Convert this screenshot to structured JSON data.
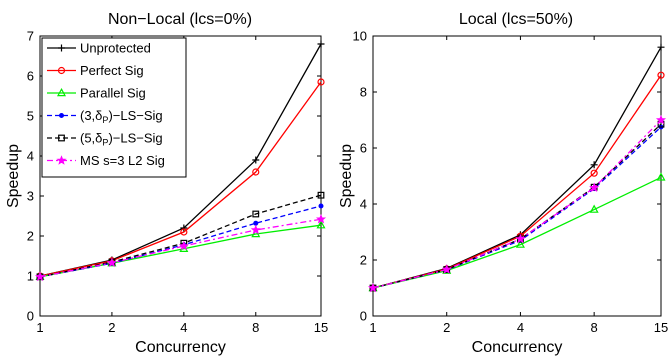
{
  "chart_data": [
    {
      "type": "line",
      "title": "Non−Local (lcs=0%)",
      "xlabel": "Concurrency",
      "ylabel": "Speedup",
      "x": [
        1,
        2,
        4,
        8,
        15
      ],
      "x_tick_labels": [
        "1",
        "2",
        "4",
        "8",
        "15"
      ],
      "x_scale": "log",
      "ylim": [
        0,
        7
      ],
      "y_ticks": [
        0,
        1,
        2,
        3,
        4,
        5,
        6,
        7
      ],
      "y_tick_labels": [
        "0",
        "1",
        "2",
        "3",
        "4",
        "5",
        "6",
        "7"
      ],
      "grid": false,
      "legend_position": "top-left",
      "series": [
        {
          "name": "Unprotected",
          "values": [
            1.0,
            1.4,
            2.2,
            3.9,
            6.8
          ],
          "color": "#000000",
          "dash": "solid",
          "marker": "plus"
        },
        {
          "name": "Perfect Sig",
          "values": [
            1.0,
            1.38,
            2.1,
            3.6,
            5.85
          ],
          "color": "#ff0000",
          "dash": "solid",
          "marker": "circle"
        },
        {
          "name": "Parallel Sig",
          "values": [
            0.98,
            1.32,
            1.68,
            2.05,
            2.27
          ],
          "color": "#00ee00",
          "dash": "solid",
          "marker": "triangle"
        },
        {
          "name": "(3,δP)−LS−Sig",
          "values": [
            0.98,
            1.32,
            1.78,
            2.32,
            2.75
          ],
          "color": "#0000ff",
          "dash": "dashed",
          "marker": "dot"
        },
        {
          "name": "(5,δP)−LS−Sig",
          "values": [
            0.98,
            1.35,
            1.82,
            2.55,
            3.02
          ],
          "color": "#000000",
          "dash": "dashed",
          "marker": "square"
        },
        {
          "name": "MS s=3 L2 Sig",
          "values": [
            0.98,
            1.33,
            1.75,
            2.15,
            2.42
          ],
          "color": "#ff00ff",
          "dash": "dashdot",
          "marker": "star"
        }
      ],
      "legend": [
        {
          "pre": "Unprotected",
          "sub": "",
          "post": ""
        },
        {
          "pre": "Perfect Sig",
          "sub": "",
          "post": ""
        },
        {
          "pre": "Parallel Sig",
          "sub": "",
          "post": ""
        },
        {
          "pre": "(3,δ",
          "sub": "P",
          "post": ")−LS−Sig"
        },
        {
          "pre": "(5,δ",
          "sub": "P",
          "post": ")−LS−Sig"
        },
        {
          "pre": "MS s=3 L2 Sig",
          "sub": "",
          "post": ""
        }
      ]
    },
    {
      "type": "line",
      "title": "Local (lcs=50%)",
      "xlabel": "Concurrency",
      "ylabel": "Speedup",
      "x": [
        1,
        2,
        4,
        8,
        15
      ],
      "x_tick_labels": [
        "1",
        "2",
        "4",
        "8",
        "15"
      ],
      "x_scale": "log",
      "ylim": [
        0,
        10
      ],
      "y_ticks": [
        0,
        2,
        4,
        6,
        8,
        10
      ],
      "y_tick_labels": [
        "0",
        "2",
        "4",
        "6",
        "8",
        "10"
      ],
      "grid": false,
      "series": [
        {
          "name": "Unprotected",
          "values": [
            1.0,
            1.7,
            2.9,
            5.4,
            9.6
          ],
          "color": "#000000",
          "dash": "solid",
          "marker": "plus"
        },
        {
          "name": "Perfect Sig",
          "values": [
            1.0,
            1.68,
            2.85,
            5.1,
            8.6
          ],
          "color": "#ff0000",
          "dash": "solid",
          "marker": "circle"
        },
        {
          "name": "Parallel Sig",
          "values": [
            1.0,
            1.62,
            2.55,
            3.8,
            4.95
          ],
          "color": "#00ee00",
          "dash": "solid",
          "marker": "triangle"
        },
        {
          "name": "(3,δP)−LS−Sig",
          "values": [
            1.0,
            1.65,
            2.7,
            4.55,
            6.75
          ],
          "color": "#0000ff",
          "dash": "dashed",
          "marker": "dot"
        },
        {
          "name": "(5,δP)−LS−Sig",
          "values": [
            1.0,
            1.66,
            2.75,
            4.6,
            6.85
          ],
          "color": "#000000",
          "dash": "dashed",
          "marker": "square"
        },
        {
          "name": "MS s=3 L2 Sig",
          "values": [
            1.0,
            1.66,
            2.75,
            4.58,
            7.0
          ],
          "color": "#ff00ff",
          "dash": "dashdot",
          "marker": "star"
        }
      ]
    }
  ]
}
